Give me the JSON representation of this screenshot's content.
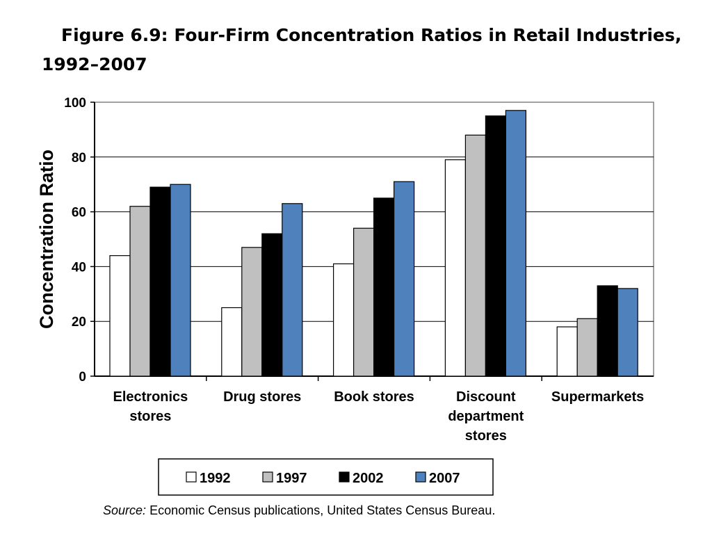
{
  "title": {
    "line1": "Figure 6.9: Four-Firm Concentration Ratios in Retail Industries,",
    "line2": "1992–2007"
  },
  "source": {
    "label": "Source:",
    "text": "Economic Census publications, United States Census Bureau."
  },
  "chart_data": {
    "type": "bar",
    "title": "Figure 6.9: Four-Firm Concentration Ratios in Retail Industries, 1992–2007",
    "xlabel": "",
    "ylabel": "Concentration Ratio",
    "ylim": [
      0,
      100
    ],
    "yticks": [
      0,
      20,
      40,
      60,
      80,
      100
    ],
    "grid": true,
    "legend_position": "bottom",
    "categories": [
      [
        "Electronics",
        "stores"
      ],
      [
        "Drug stores"
      ],
      [
        "Book stores"
      ],
      [
        "Discount",
        "department",
        "stores"
      ],
      [
        "Supermarkets"
      ]
    ],
    "series": [
      {
        "name": "1992",
        "color": "#ffffff",
        "values": [
          44,
          25,
          41,
          79,
          18
        ]
      },
      {
        "name": "1997",
        "color": "#c0c0c0",
        "values": [
          62,
          47,
          54,
          88,
          21
        ]
      },
      {
        "name": "2002",
        "color": "#000000",
        "values": [
          69,
          52,
          65,
          95,
          33
        ]
      },
      {
        "name": "2007",
        "color": "#4f81bd",
        "values": [
          70,
          63,
          71,
          97,
          32
        ]
      }
    ]
  }
}
